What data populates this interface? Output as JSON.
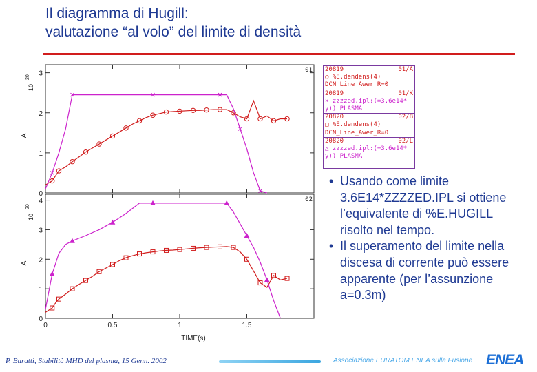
{
  "title": {
    "line1": "Il diagramma di Hugill:",
    "line2": "valutazione “al volo” del limite di densità"
  },
  "colors": {
    "title": "#1f3a93",
    "rule": "#d11d1d",
    "red_series": "#d11d1d",
    "magenta_series": "#cc22cc"
  },
  "chart_data": [
    {
      "type": "line",
      "panel_label": "01",
      "xlim": [
        0,
        2.0
      ],
      "ylim": [
        0,
        3.2
      ],
      "x_ticks": [
        0,
        0.5,
        1,
        1.5
      ],
      "y_ticks": [
        "0",
        "1",
        "2",
        "3"
      ],
      "ylabel": "A",
      "y_exponent": "10",
      "y_exponent_power": "20",
      "series": [
        {
          "x": [
            0.0,
            0.05,
            0.08,
            0.1,
            0.15,
            0.2,
            0.25,
            0.3,
            0.35,
            0.4,
            0.45,
            0.5,
            0.55,
            0.6,
            0.65,
            0.7,
            0.75,
            0.8,
            0.85,
            0.9,
            0.95,
            1.0,
            1.05,
            1.1,
            1.15,
            1.2,
            1.25,
            1.3,
            1.35,
            1.4,
            1.45,
            1.5,
            1.55,
            1.6,
            1.65,
            1.7,
            1.75,
            1.8
          ],
          "y": [
            0.2,
            0.3,
            0.45,
            0.55,
            0.65,
            0.78,
            0.9,
            1.02,
            1.12,
            1.22,
            1.32,
            1.42,
            1.52,
            1.62,
            1.72,
            1.8,
            1.88,
            1.94,
            1.98,
            2.02,
            2.03,
            2.04,
            2.05,
            2.06,
            2.06,
            2.07,
            2.08,
            2.08,
            2.08,
            2.0,
            1.9,
            1.85,
            2.3,
            1.85,
            1.92,
            1.8,
            1.85,
            1.85
          ]
        },
        {
          "x": [
            0.0,
            0.05,
            0.1,
            0.15,
            0.2,
            0.3,
            0.5,
            0.8,
            1.0,
            1.2,
            1.3,
            1.35,
            1.4,
            1.45,
            1.5,
            1.55,
            1.6,
            1.65
          ],
          "y": [
            0.1,
            0.5,
            1.0,
            1.6,
            2.45,
            2.45,
            2.45,
            2.45,
            2.45,
            2.45,
            2.45,
            2.45,
            2.1,
            1.6,
            1.1,
            0.5,
            0.05,
            0.0
          ]
        }
      ]
    },
    {
      "type": "line",
      "panel_label": "02",
      "xlim": [
        0,
        2.0
      ],
      "ylim": [
        0,
        4.2
      ],
      "x_ticks": [
        "0",
        "0.5",
        "1",
        "1.5"
      ],
      "y_ticks": [
        "0",
        "1",
        "2",
        "3",
        "4"
      ],
      "xlabel": "TIME(s)",
      "ylabel": "A",
      "y_exponent": "10",
      "y_exponent_power": "20",
      "series": [
        {
          "x": [
            0.0,
            0.05,
            0.08,
            0.1,
            0.15,
            0.2,
            0.25,
            0.3,
            0.35,
            0.4,
            0.45,
            0.5,
            0.55,
            0.6,
            0.65,
            0.7,
            0.75,
            0.8,
            0.85,
            0.9,
            0.95,
            1.0,
            1.05,
            1.1,
            1.15,
            1.2,
            1.25,
            1.3,
            1.35,
            1.4,
            1.45,
            1.5,
            1.55,
            1.6,
            1.65,
            1.7,
            1.75,
            1.8
          ],
          "y": [
            0.2,
            0.35,
            0.55,
            0.65,
            0.82,
            1.0,
            1.15,
            1.28,
            1.42,
            1.58,
            1.7,
            1.82,
            1.95,
            2.05,
            2.12,
            2.18,
            2.22,
            2.25,
            2.28,
            2.3,
            2.31,
            2.33,
            2.35,
            2.37,
            2.39,
            2.4,
            2.41,
            2.42,
            2.43,
            2.4,
            2.25,
            2.0,
            1.6,
            1.2,
            1.05,
            1.45,
            1.3,
            1.35
          ]
        },
        {
          "x": [
            0.0,
            0.05,
            0.1,
            0.15,
            0.2,
            0.3,
            0.4,
            0.5,
            0.6,
            0.7,
            0.8,
            1.0,
            1.2,
            1.35,
            1.4,
            1.45,
            1.5,
            1.55,
            1.6,
            1.65,
            1.7,
            1.75
          ],
          "y": [
            0.3,
            1.5,
            2.2,
            2.5,
            2.62,
            2.8,
            3.0,
            3.25,
            3.55,
            3.9,
            3.9,
            3.9,
            3.9,
            3.9,
            3.6,
            3.2,
            2.8,
            2.4,
            1.9,
            1.3,
            0.6,
            0.0
          ]
        }
      ]
    }
  ],
  "legend": {
    "entries": [
      {
        "shot": "20819",
        "tag": "01/A",
        "symbol": "○",
        "line2": "%E.dendens(4)",
        "line3": "DCN_Line_Awer_R=0",
        "color": "#d11d1d"
      },
      {
        "shot": "20819",
        "tag": "01/K",
        "symbol": "×",
        "line2": "zzzzed.ipl:(=3.6e14*",
        "line3": "y)) PLASMA",
        "color": "#cc22cc"
      },
      {
        "shot": "20820",
        "tag": "02/B",
        "symbol": "□",
        "line2": "%E.dendens(4)",
        "line3": "DCN_Line_Awer_R=0",
        "color": "#d11d1d"
      },
      {
        "shot": "20820",
        "tag": "02/L",
        "symbol": "△",
        "line2": "zzzzed.ipl:(=3.6e14*",
        "line3": "y)) PLASMA",
        "color": "#cc22cc"
      }
    ]
  },
  "bullets": [
    "Usando come limite 3.6E14*ZZZZED.IPL si ottiene l’equivalente di %E.HUGILL risolto nel tempo.",
    "Il superamento del limite nella discesa di corrente può essere apparente (per l’assunzione a=0.3m)"
  ],
  "footer": {
    "left": "P. Buratti, Stabilità MHD del plasma, 15 Genn. 2002",
    "org": "Associazione EURATOM ENEA sulla Fusione",
    "logo": "ENEA"
  }
}
